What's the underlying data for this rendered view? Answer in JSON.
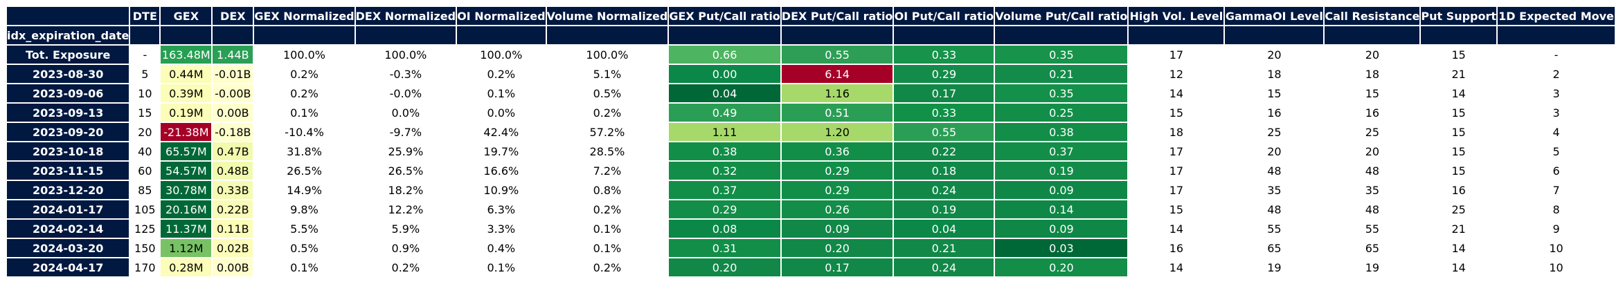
{
  "chart_data": {
    "type": "table",
    "index_name": "idx_expiration_date",
    "columns": [
      "DTE",
      "GEX",
      "DEX",
      "GEX Normalized",
      "DEX Normalized",
      "OI Normalized",
      "Volume Normalized",
      "GEX Put/Call ratio",
      "DEX Put/Call ratio",
      "OI Put/Call ratio",
      "Volume Put/Call ratio",
      "High Vol. Level",
      "GammaOI Level",
      "Call Resistance",
      "Put Support",
      "1D Expected Move"
    ],
    "rows": [
      {
        "idx": "Tot. Exposure",
        "cells": [
          "-",
          "163.48M",
          "1.44B",
          "100.0%",
          "100.0%",
          "100.0%",
          "100.0%",
          "0.66",
          "0.55",
          "0.33",
          "0.35",
          "17",
          "20",
          "20",
          "15",
          "-"
        ]
      },
      {
        "idx": "2023-08-30",
        "cells": [
          "5",
          "0.44M",
          "-0.01B",
          "0.2%",
          "-0.3%",
          "0.2%",
          "5.1%",
          "0.00",
          "6.14",
          "0.29",
          "0.21",
          "12",
          "18",
          "18",
          "21",
          "2"
        ]
      },
      {
        "idx": "2023-09-06",
        "cells": [
          "10",
          "0.39M",
          "-0.00B",
          "0.2%",
          "-0.0%",
          "0.1%",
          "0.5%",
          "0.04",
          "1.16",
          "0.17",
          "0.35",
          "14",
          "15",
          "15",
          "14",
          "3"
        ]
      },
      {
        "idx": "2023-09-13",
        "cells": [
          "15",
          "0.19M",
          "0.00B",
          "0.1%",
          "0.0%",
          "0.0%",
          "0.2%",
          "0.49",
          "0.51",
          "0.33",
          "0.25",
          "15",
          "16",
          "16",
          "15",
          "3"
        ]
      },
      {
        "idx": "2023-09-20",
        "cells": [
          "20",
          "-21.38M",
          "-0.18B",
          "-10.4%",
          "-9.7%",
          "42.4%",
          "57.2%",
          "1.11",
          "1.20",
          "0.55",
          "0.38",
          "18",
          "25",
          "25",
          "15",
          "4"
        ]
      },
      {
        "idx": "2023-10-18",
        "cells": [
          "40",
          "65.57M",
          "0.47B",
          "31.8%",
          "25.9%",
          "19.7%",
          "28.5%",
          "0.38",
          "0.36",
          "0.22",
          "0.37",
          "17",
          "20",
          "20",
          "15",
          "5"
        ]
      },
      {
        "idx": "2023-11-15",
        "cells": [
          "60",
          "54.57M",
          "0.48B",
          "26.5%",
          "26.5%",
          "16.6%",
          "7.2%",
          "0.32",
          "0.29",
          "0.18",
          "0.19",
          "17",
          "48",
          "48",
          "15",
          "6"
        ]
      },
      {
        "idx": "2023-12-20",
        "cells": [
          "85",
          "30.78M",
          "0.33B",
          "14.9%",
          "18.2%",
          "10.9%",
          "0.8%",
          "0.37",
          "0.29",
          "0.24",
          "0.09",
          "17",
          "35",
          "35",
          "16",
          "7"
        ]
      },
      {
        "idx": "2024-01-17",
        "cells": [
          "105",
          "20.16M",
          "0.22B",
          "9.8%",
          "12.2%",
          "6.3%",
          "0.2%",
          "0.29",
          "0.26",
          "0.19",
          "0.14",
          "15",
          "48",
          "48",
          "25",
          "8"
        ]
      },
      {
        "idx": "2024-02-14",
        "cells": [
          "125",
          "11.37M",
          "0.11B",
          "5.5%",
          "5.9%",
          "3.3%",
          "0.1%",
          "0.08",
          "0.09",
          "0.04",
          "0.09",
          "14",
          "55",
          "55",
          "21",
          "9"
        ]
      },
      {
        "idx": "2024-03-20",
        "cells": [
          "150",
          "1.12M",
          "0.02B",
          "0.5%",
          "0.9%",
          "0.4%",
          "0.1%",
          "0.31",
          "0.20",
          "0.21",
          "0.03",
          "16",
          "65",
          "65",
          "14",
          "10"
        ]
      },
      {
        "idx": "2024-04-17",
        "cells": [
          "170",
          "0.28M",
          "0.00B",
          "0.1%",
          "0.2%",
          "0.1%",
          "0.2%",
          "0.20",
          "0.17",
          "0.24",
          "0.20",
          "14",
          "19",
          "19",
          "14",
          "10"
        ]
      }
    ],
    "cell_colors": [
      [
        null,
        "#279f53",
        "#2a9f55",
        null,
        null,
        null,
        null,
        "#4db461",
        "#2e9e56",
        "#17934b",
        "#17934b",
        null,
        null,
        null,
        null,
        null
      ],
      [
        null,
        "#fbfdb8",
        "#ffffcc",
        null,
        null,
        null,
        null,
        "#0b8847",
        "#a50026",
        "#138c49",
        "#138c49",
        null,
        null,
        null,
        null,
        null
      ],
      [
        null,
        "#fbfdb8",
        "#ffffcc",
        null,
        null,
        null,
        null,
        "#006837",
        "#a6d96a",
        "#118848",
        "#139049",
        null,
        null,
        null,
        null,
        null
      ],
      [
        null,
        "#fbfdb8",
        "#ffffcc",
        null,
        null,
        null,
        null,
        "#2b9e55",
        "#2b9e55",
        "#119048",
        "#128e48",
        null,
        null,
        null,
        null,
        null
      ],
      [
        null,
        "#a50026",
        "#ffffcc",
        null,
        null,
        null,
        null,
        "#a6d96a",
        "#a6d96a",
        "#2b9e55",
        "#128e48",
        null,
        null,
        null,
        null,
        null
      ],
      [
        null,
        "#006837",
        "#f2faae",
        null,
        null,
        null,
        null,
        "#128e48",
        "#128e48",
        "#118848",
        "#128e48",
        null,
        null,
        null,
        null,
        null
      ],
      [
        null,
        "#006837",
        "#f2faae",
        null,
        null,
        null,
        null,
        "#128e48",
        "#128e48",
        "#118848",
        "#138c49",
        null,
        null,
        null,
        null,
        null
      ],
      [
        null,
        "#006837",
        "#f5fbb2",
        null,
        null,
        null,
        null,
        "#128e48",
        "#128e48",
        "#118848",
        "#0f8847",
        null,
        null,
        null,
        null,
        null
      ],
      [
        null,
        "#006837",
        "#f8fcb6",
        null,
        null,
        null,
        null,
        "#128e48",
        "#128e48",
        "#118848",
        "#0f8847",
        null,
        null,
        null,
        null,
        null
      ],
      [
        null,
        "#006837",
        "#fbfdb8",
        null,
        null,
        null,
        null,
        "#0b8847",
        "#118848",
        "#0b8847",
        "#0f8847",
        null,
        null,
        null,
        null,
        null
      ],
      [
        null,
        "#78c265",
        "#fbfdb8",
        null,
        null,
        null,
        null,
        "#128e48",
        "#118848",
        "#118848",
        "#006837",
        null,
        null,
        null,
        null,
        null
      ],
      [
        null,
        "#fbfdb8",
        "#ffffcc",
        null,
        null,
        null,
        null,
        "#118848",
        "#118848",
        "#118848",
        "#128e48",
        null,
        null,
        null,
        null,
        null
      ]
    ],
    "header_color": "#011840",
    "header_text_color": "#ffffff"
  }
}
